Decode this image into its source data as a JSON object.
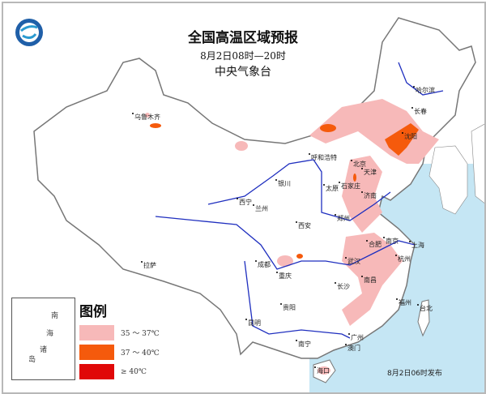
{
  "header": {
    "title": "全国高温区域预报",
    "time_range": "8月2日08时—20时",
    "issuer": "中央气象台",
    "logo": "cma-logo"
  },
  "legend": {
    "title": "图例",
    "items": [
      {
        "label": "35 ～ 37℃",
        "color": "#f7b9b9"
      },
      {
        "label": "37 ～ 40℃",
        "color": "#f55a0c"
      },
      {
        "label": "≥ 40℃",
        "color": "#e00808"
      }
    ]
  },
  "inset": {
    "labels": [
      "南",
      "海",
      "诸",
      "岛"
    ]
  },
  "colors": {
    "sea": "#c5e6f4",
    "river": "#1f2fbf",
    "border": "#7a7a7a"
  },
  "cities": [
    "乌鲁木齐",
    "拉萨",
    "西宁",
    "兰州",
    "银川",
    "呼和浩特",
    "太原",
    "石家庄",
    "北京",
    "天津",
    "济南",
    "郑州",
    "西安",
    "哈尔滨",
    "长春",
    "沈阳",
    "合肥",
    "南京",
    "上海",
    "杭州",
    "武汉",
    "长沙",
    "南昌",
    "福州",
    "台北",
    "成都",
    "重庆",
    "贵阳",
    "昆明",
    "南宁",
    "广州",
    "澳门",
    "海口"
  ],
  "footer": {
    "issued": "8月2日06时发布"
  }
}
